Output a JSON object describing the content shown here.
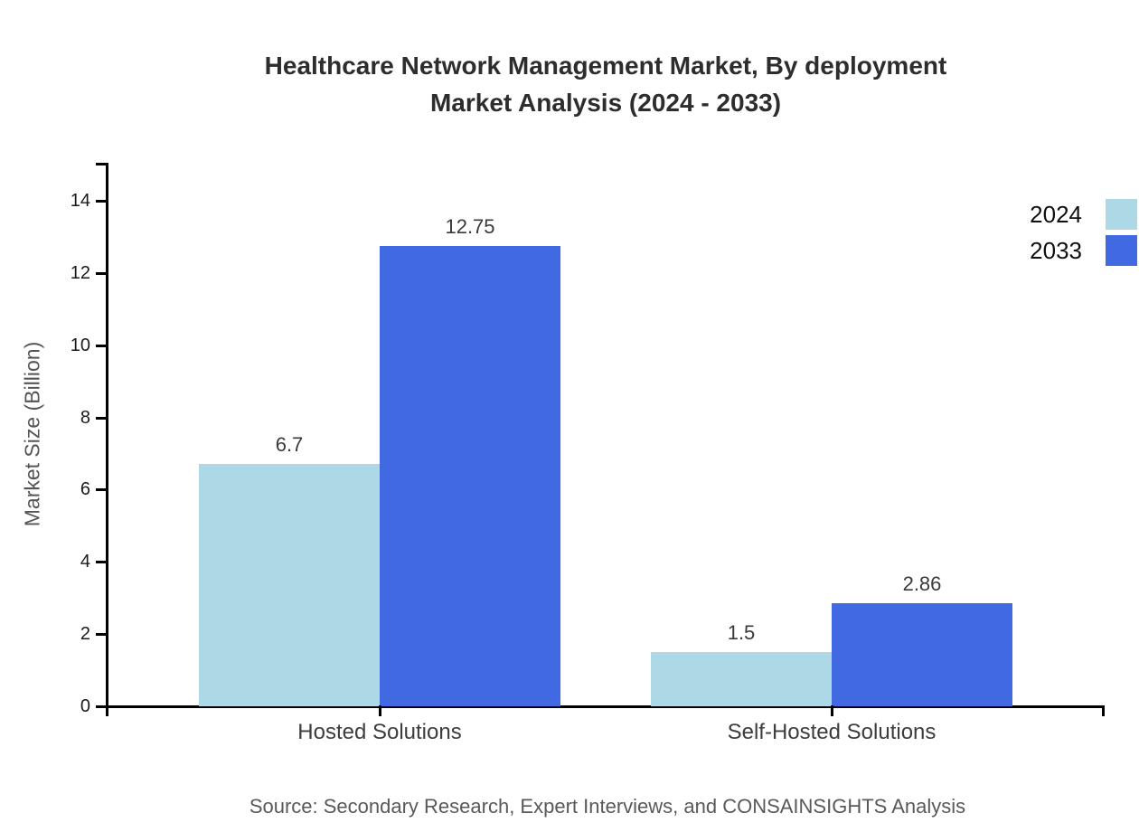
{
  "page": {
    "title_line1": "Healthcare Network Management Market, By deployment",
    "title_line2": "Market Analysis (2024 - 2033)",
    "source_note": "Source: Secondary Research, Expert Interviews, and CONSAINSIGHTS Analysis"
  },
  "colors": {
    "series_2024": "#ADD8E6",
    "series_2033": "#4169E1",
    "axis": "#000000",
    "title_text": "#2d2d2d",
    "y_axis_title_text": "#555555",
    "tick_label_text": "#1a1a1a",
    "category_label_text": "#3d3d3d",
    "value_label_text": "#3a3a3a",
    "source_text": "#595959"
  },
  "legend": {
    "position": "top-right",
    "items": [
      {
        "label": "2024",
        "color": "#ADD8E6"
      },
      {
        "label": "2033",
        "color": "#4169E1"
      }
    ]
  },
  "chart_data": {
    "type": "bar",
    "title": "Healthcare Network Management Market, By deployment Market Analysis (2024 - 2033)",
    "categories": [
      "Hosted Solutions",
      "Self-Hosted Solutions"
    ],
    "series": [
      {
        "name": "2024",
        "color": "#ADD8E6",
        "values": [
          6.7,
          1.5
        ]
      },
      {
        "name": "2033",
        "color": "#4169E1",
        "values": [
          12.75,
          2.86
        ]
      }
    ],
    "value_labels": [
      [
        "6.7",
        "1.5"
      ],
      [
        "12.75",
        "2.86"
      ]
    ],
    "xlabel": "",
    "ylabel": "Market Size (Billion)",
    "ylim": [
      0,
      15.05
    ],
    "yticks": [
      0,
      2,
      4,
      6,
      8,
      10,
      12,
      14
    ],
    "grid": false,
    "legend_position": "top-right"
  }
}
